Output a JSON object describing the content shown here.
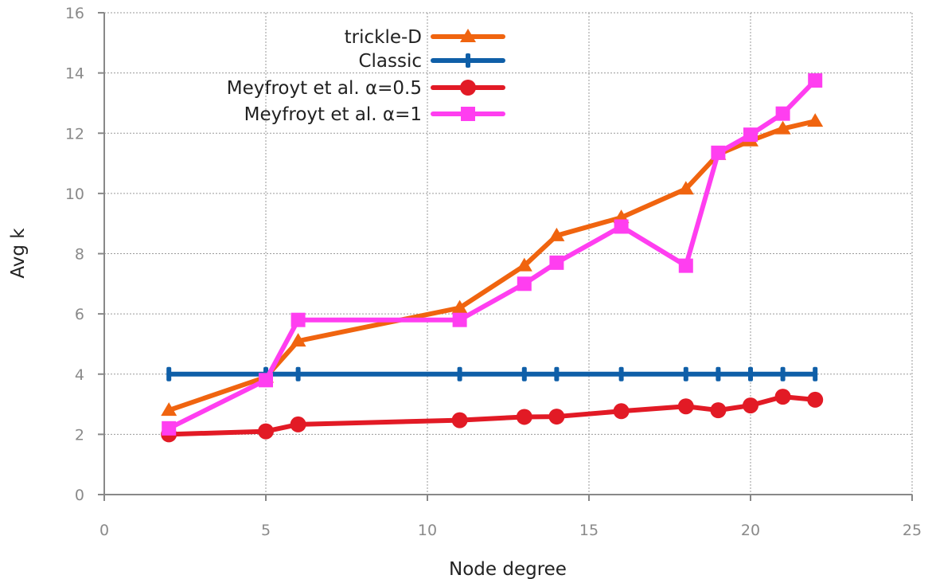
{
  "chart_data": {
    "type": "line",
    "xlabel": "Node degree",
    "ylabel": "Avg k",
    "xlim": [
      0,
      25
    ],
    "ylim": [
      0,
      16
    ],
    "xticks": [
      0,
      5,
      10,
      15,
      20,
      25
    ],
    "yticks": [
      0,
      2,
      4,
      6,
      8,
      10,
      12,
      14,
      16
    ],
    "grid": true,
    "legend_position": "top-center",
    "series": [
      {
        "name": "trickle-D",
        "color": "#f0640f",
        "marker": "triangle",
        "x": [
          2,
          5,
          6,
          11,
          13,
          14,
          16,
          18,
          19,
          20,
          21,
          22
        ],
        "y": [
          2.8,
          3.9,
          5.1,
          6.2,
          7.6,
          8.6,
          9.2,
          10.15,
          11.3,
          11.75,
          12.15,
          12.4
        ]
      },
      {
        "name": "Classic",
        "color": "#0f5fa8",
        "marker": "bar",
        "x": [
          2,
          5,
          6,
          11,
          13,
          14,
          16,
          18,
          19,
          20,
          21,
          22
        ],
        "y": [
          4,
          4,
          4,
          4,
          4,
          4,
          4,
          4,
          4,
          4,
          4,
          4
        ]
      },
      {
        "name": "Meyfroyt et al. α=0.5",
        "color": "#e21a25",
        "marker": "circle",
        "x": [
          2,
          5,
          6,
          11,
          13,
          14,
          16,
          18,
          19,
          20,
          21,
          22
        ],
        "y": [
          2.0,
          2.1,
          2.33,
          2.47,
          2.58,
          2.59,
          2.77,
          2.93,
          2.8,
          2.96,
          3.25,
          3.15
        ]
      },
      {
        "name": "Meyfroyt et al. α=1",
        "color": "#ff3ef0",
        "marker": "square",
        "x": [
          2,
          5,
          6,
          11,
          13,
          14,
          16,
          18,
          19,
          20,
          21,
          22
        ],
        "y": [
          2.2,
          3.8,
          5.8,
          5.8,
          7.0,
          7.7,
          8.9,
          7.6,
          11.35,
          11.95,
          12.65,
          13.75
        ]
      }
    ]
  }
}
